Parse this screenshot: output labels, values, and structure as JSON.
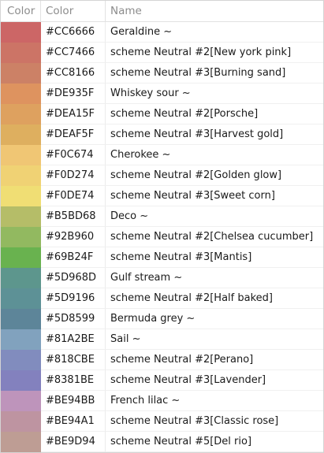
{
  "table": {
    "columns": [
      "Color",
      "Color",
      "Name"
    ],
    "rows": [
      {
        "color": "#CC6666",
        "hex": "#CC6666",
        "name": "Geraldine ~"
      },
      {
        "color": "#CC7466",
        "hex": "#CC7466",
        "name": "scheme Neutral #2[New york pink]"
      },
      {
        "color": "#CC8166",
        "hex": "#CC8166",
        "name": "scheme Neutral #3[Burning sand]"
      },
      {
        "color": "#DE935F",
        "hex": "#DE935F",
        "name": "Whiskey sour ~"
      },
      {
        "color": "#DEA15F",
        "hex": "#DEA15F",
        "name": "scheme Neutral #2[Porsche]"
      },
      {
        "color": "#DEAF5F",
        "hex": "#DEAF5F",
        "name": "scheme Neutral #3[Harvest gold]"
      },
      {
        "color": "#F0C674",
        "hex": "#F0C674",
        "name": "Cherokee ~"
      },
      {
        "color": "#F0D274",
        "hex": "#F0D274",
        "name": "scheme Neutral #2[Golden glow]"
      },
      {
        "color": "#F0DE74",
        "hex": "#F0DE74",
        "name": "scheme Neutral #3[Sweet corn]"
      },
      {
        "color": "#B5BD68",
        "hex": "#B5BD68",
        "name": "Deco ~"
      },
      {
        "color": "#92B960",
        "hex": "#92B960",
        "name": "scheme Neutral #2[Chelsea cucumber]"
      },
      {
        "color": "#69B24F",
        "hex": "#69B24F",
        "name": "scheme Neutral #3[Mantis]"
      },
      {
        "color": "#5D968D",
        "hex": "#5D968D",
        "name": "Gulf stream ~"
      },
      {
        "color": "#5D9196",
        "hex": "#5D9196",
        "name": "scheme Neutral #2[Half baked]"
      },
      {
        "color": "#5D8599",
        "hex": "#5D8599",
        "name": "Bermuda grey ~"
      },
      {
        "color": "#81A2BE",
        "hex": "#81A2BE",
        "name": "Sail ~"
      },
      {
        "color": "#818CBE",
        "hex": "#818CBE",
        "name": "scheme Neutral #2[Perano]"
      },
      {
        "color": "#8381BE",
        "hex": "#8381BE",
        "name": "scheme Neutral #3[Lavender]"
      },
      {
        "color": "#BE94BB",
        "hex": "#BE94BB",
        "name": "French lilac ~"
      },
      {
        "color": "#BE94A1",
        "hex": "#BE94A1",
        "name": "scheme Neutral #3[Classic rose]"
      },
      {
        "color": "#BE9D94",
        "hex": "#BE9D94",
        "name": "scheme Neutral #5[Del rio]"
      }
    ]
  }
}
